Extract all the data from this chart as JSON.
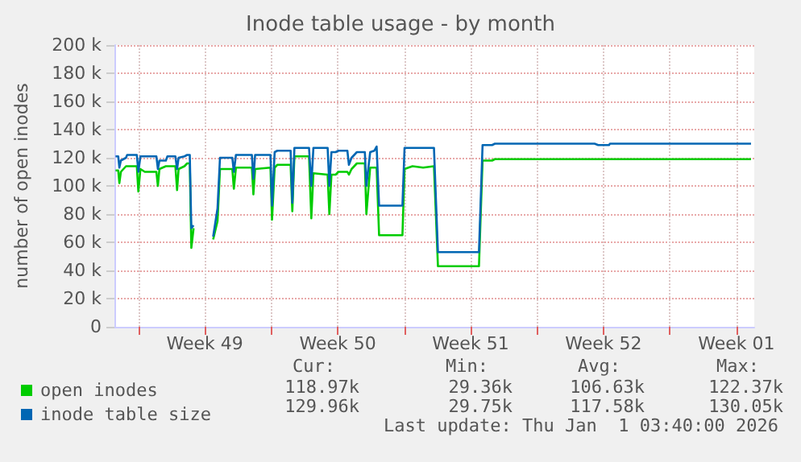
{
  "chart_data": {
    "type": "line",
    "title": "Inode table usage - by month",
    "ylabel": "number of open inodes",
    "x": [
      "2025-11-29T19:12",
      "2025-11-29T22:34",
      "2025-11-30T00:00",
      "2025-11-30T01:55",
      "2025-11-30T08:24",
      "2025-11-30T09:50",
      "2025-11-30T22:05",
      "2025-12-01T00:00",
      "2025-12-01T02:38",
      "2025-12-01T08:10",
      "2025-12-01T22:48",
      "2025-12-02T00:43",
      "2025-12-02T02:38",
      "2025-12-02T10:48",
      "2025-12-02T12:43",
      "2025-12-02T22:48",
      "2025-12-03T00:58",
      "2025-12-03T02:53",
      "2025-12-03T10:19",
      "2025-12-03T13:41",
      "2025-12-03T17:02",
      "2025-12-03T18:58",
      "2025-12-03T21:50",
      "2025-12-04T00:00",
      "2025-12-04T22:34",
      "2025-12-05T04:05",
      "2025-12-05T07:12",
      "2025-12-05T22:48",
      "2025-12-06T00:43",
      "2025-12-06T03:22",
      "2025-12-06T23:31",
      "2025-12-07T01:26",
      "2025-12-07T03:36",
      "2025-12-07T23:02",
      "2025-12-08T00:58",
      "2025-12-08T04:19",
      "2025-12-08T07:41",
      "2025-12-09T00:29",
      "2025-12-09T02:38",
      "2025-12-09T05:17",
      "2025-12-09T23:46",
      "2025-12-10T02:38",
      "2025-12-10T05:17",
      "2025-12-10T23:17",
      "2025-12-11T01:26",
      "2025-12-11T04:05",
      "2025-12-11T09:22",
      "2025-12-11T12:58",
      "2025-12-12T00:14",
      "2025-12-12T02:10",
      "2025-12-12T05:31",
      "2025-12-12T12:14",
      "2025-12-12T22:19",
      "2025-12-13T00:14",
      "2025-12-13T05:02",
      "2025-12-13T10:19",
      "2025-12-13T13:12",
      "2025-12-13T16:19",
      "2025-12-14T21:50",
      "2025-12-15T00:29",
      "2025-12-15T10:34",
      "2025-12-16T00:00",
      "2025-12-16T13:41",
      "2025-12-16T14:53",
      "2025-12-16T18:43",
      "2025-12-18T22:34",
      "2025-12-19T03:07",
      "2025-12-19T15:07",
      "2025-12-19T18:43",
      "2025-12-25T00:43",
      "2025-12-25T05:17",
      "2025-12-25T18:58",
      "2025-12-25T20:10",
      "2026-01-02T06:29"
    ],
    "series": [
      {
        "name": "open inodes",
        "color": "#00cc00",
        "values": [
          111000,
          111000,
          102000,
          110000,
          114000,
          114000,
          114000,
          96000,
          112000,
          110000,
          110000,
          100000,
          112000,
          114000,
          114000,
          114000,
          97000,
          112000,
          114000,
          116000,
          116000,
          56000,
          70000,
          null,
          62000,
          75000,
          112000,
          112000,
          98000,
          113000,
          113000,
          94000,
          112000,
          113000,
          76000,
          113000,
          115000,
          115000,
          82000,
          121000,
          121000,
          77000,
          109000,
          108000,
          80000,
          108000,
          108000,
          110000,
          110000,
          108000,
          112000,
          116000,
          116000,
          80000,
          113000,
          113000,
          113000,
          65000,
          65000,
          112000,
          114000,
          113000,
          114000,
          114000,
          43000,
          43000,
          118000,
          118000,
          119000,
          119000,
          119000,
          119000,
          119000,
          119000
        ]
      },
      {
        "name": "inode table size",
        "color": "#0066b3",
        "values": [
          121000,
          121000,
          113000,
          118000,
          120000,
          122000,
          122000,
          110000,
          121000,
          121000,
          121000,
          112000,
          118000,
          118000,
          121000,
          121000,
          112000,
          120000,
          121000,
          122000,
          122000,
          70000,
          72000,
          null,
          64000,
          84000,
          120000,
          120000,
          110000,
          122000,
          122000,
          105000,
          122000,
          122000,
          86000,
          124000,
          125000,
          125000,
          88000,
          127000,
          127000,
          100000,
          127000,
          127000,
          100000,
          124000,
          124000,
          125000,
          125000,
          115000,
          120000,
          124000,
          124000,
          100000,
          124000,
          125000,
          128000,
          86000,
          86000,
          127000,
          127000,
          127000,
          127000,
          127000,
          53000,
          53000,
          129000,
          129000,
          130000,
          130000,
          129000,
          129000,
          130000,
          130000
        ]
      }
    ],
    "xlim": [
      "2025-11-29T17:46",
      "2026-01-02T10:34"
    ],
    "xticks": [
      {
        "value": "2025-12-01T00:00",
        "label": null
      },
      {
        "value": "2025-12-04T12:00",
        "label": "Week 49"
      },
      {
        "value": "2025-12-08T00:00",
        "label": null
      },
      {
        "value": "2025-12-11T12:00",
        "label": "Week 50"
      },
      {
        "value": "2025-12-15T00:00",
        "label": null
      },
      {
        "value": "2025-12-18T12:00",
        "label": "Week 51"
      },
      {
        "value": "2025-12-22T00:00",
        "label": null
      },
      {
        "value": "2025-12-25T12:00",
        "label": "Week 52"
      },
      {
        "value": "2025-12-29T00:00",
        "label": null
      },
      {
        "value": "2026-01-01T12:00",
        "label": "Week 01"
      }
    ],
    "ylim": [
      0,
      200000
    ],
    "yticks": [
      0,
      {
        "value": 20000,
        "label": "20 k"
      },
      {
        "value": 40000,
        "label": "40 k"
      },
      {
        "value": 60000,
        "label": "60 k"
      },
      {
        "value": 80000,
        "label": "80 k"
      },
      {
        "value": 100000,
        "label": "100 k"
      },
      {
        "value": 120000,
        "label": "120 k"
      },
      {
        "value": 140000,
        "label": "140 k"
      },
      {
        "value": 160000,
        "label": "160 k"
      },
      {
        "value": 180000,
        "label": "180 k"
      },
      {
        "value": 200000,
        "label": "200 k"
      }
    ],
    "grid": true,
    "legend": "bottom",
    "marker": "none",
    "line_style": "solid",
    "annotations": [
      "Cur:",
      "Min:",
      "Avg:",
      "Max:",
      "118.97k",
      "29.36k",
      "106.63k",
      "122.37k",
      "129.96k",
      "29.75k",
      "117.58k",
      "130.05k",
      "Last update: Thu Jan  1 03:40:00 2026"
    ]
  }
}
